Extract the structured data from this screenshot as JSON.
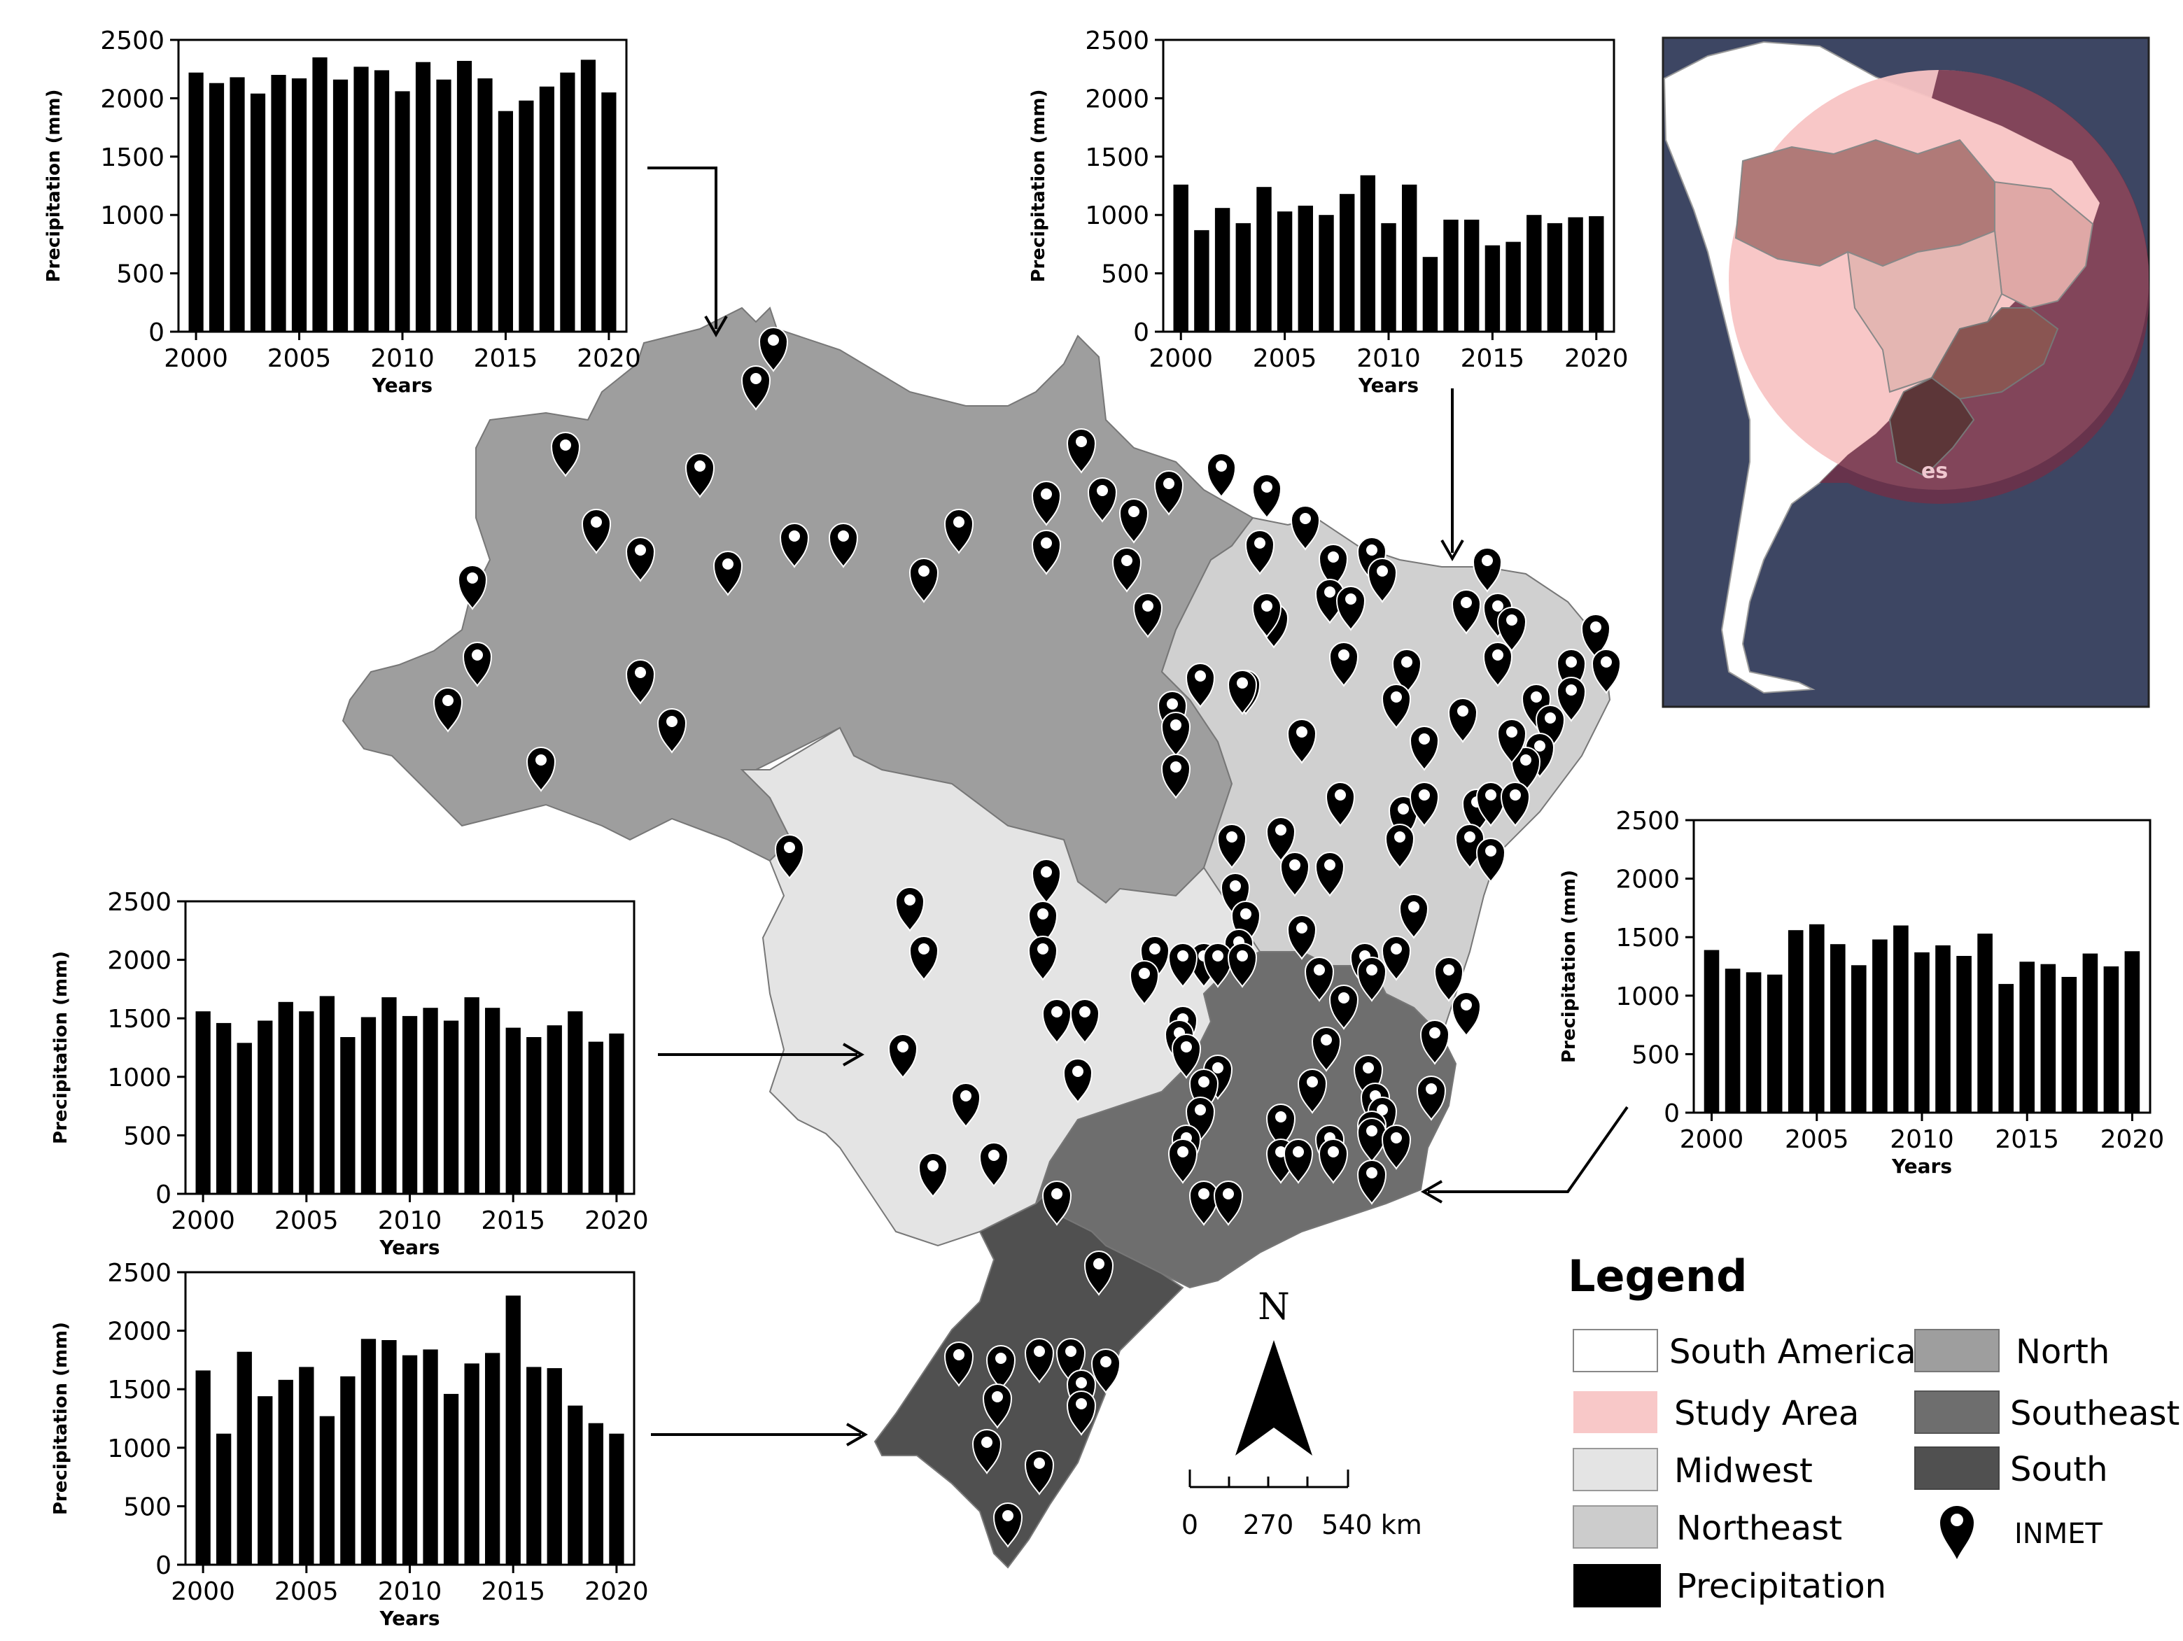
{
  "colors": {
    "north": "#9e9e9e",
    "northeast": "#d0d0d0",
    "midwest": "#e4e4e4",
    "southeast": "#6e6e6e",
    "south": "#505050",
    "bar": "#000000",
    "ocean": "#3d4663",
    "study_area": "#f8c4c4",
    "inset_dark": "#6e3048"
  },
  "inset": {
    "label": "es"
  },
  "legend": {
    "title": "Legend",
    "items": [
      {
        "label": "South America",
        "swatch": "#ffffff"
      },
      {
        "label": "Study Area",
        "swatch": "#f8c8c8"
      },
      {
        "label": "Midwest",
        "swatch": "#e4e4e4"
      },
      {
        "label": "Northeast",
        "swatch": "#cccccc"
      },
      {
        "label": "Precipitation",
        "swatch": "#000000"
      },
      {
        "label": "North",
        "swatch": "#9e9e9e"
      },
      {
        "label": "Southeast",
        "swatch": "#6e6e6e"
      },
      {
        "label": "South",
        "swatch": "#505050"
      },
      {
        "label": "INMET",
        "swatch": "marker-icon"
      }
    ]
  },
  "scale_bar": {
    "labels": [
      "0",
      "270",
      "540 km"
    ]
  },
  "north_arrow": {
    "label": "N"
  },
  "chart_data": [
    {
      "id": "north",
      "type": "bar",
      "xlabel": "Years",
      "ylabel": "Precipitation (mm)",
      "ylim": [
        0,
        2500
      ],
      "yticks": [
        0,
        500,
        1000,
        1500,
        2000,
        2500
      ],
      "xticks": [
        2000,
        2005,
        2010,
        2015,
        2020
      ],
      "x": [
        2000,
        2001,
        2002,
        2003,
        2004,
        2005,
        2006,
        2007,
        2008,
        2009,
        2010,
        2011,
        2012,
        2013,
        2014,
        2015,
        2016,
        2017,
        2018,
        2019,
        2020
      ],
      "values": [
        2220,
        2130,
        2180,
        2040,
        2200,
        2170,
        2350,
        2160,
        2270,
        2240,
        2060,
        2310,
        2160,
        2320,
        2170,
        1890,
        1980,
        2100,
        2220,
        2330,
        2050
      ]
    },
    {
      "id": "northeast",
      "type": "bar",
      "xlabel": "Years",
      "ylabel": "Precipitation (mm)",
      "ylim": [
        0,
        2500
      ],
      "yticks": [
        0,
        500,
        1000,
        1500,
        2000,
        2500
      ],
      "xticks": [
        2000,
        2005,
        2010,
        2015,
        2020
      ],
      "x": [
        2000,
        2001,
        2002,
        2003,
        2004,
        2005,
        2006,
        2007,
        2008,
        2009,
        2010,
        2011,
        2012,
        2013,
        2014,
        2015,
        2016,
        2017,
        2018,
        2019,
        2020
      ],
      "values": [
        1260,
        870,
        1060,
        930,
        1240,
        1030,
        1080,
        1000,
        1180,
        1340,
        930,
        1260,
        640,
        960,
        960,
        740,
        770,
        1000,
        930,
        980,
        990
      ]
    },
    {
      "id": "southeast",
      "type": "bar",
      "xlabel": "Years",
      "ylabel": "Precipitation (mm)",
      "ylim": [
        0,
        2500
      ],
      "yticks": [
        0,
        500,
        1000,
        1500,
        2000,
        2500
      ],
      "xticks": [
        2000,
        2005,
        2010,
        2015,
        2020
      ],
      "x": [
        2000,
        2001,
        2002,
        2003,
        2004,
        2005,
        2006,
        2007,
        2008,
        2009,
        2010,
        2011,
        2012,
        2013,
        2014,
        2015,
        2016,
        2017,
        2018,
        2019,
        2020
      ],
      "values": [
        1390,
        1230,
        1200,
        1180,
        1560,
        1610,
        1440,
        1260,
        1480,
        1600,
        1370,
        1430,
        1340,
        1530,
        1100,
        1290,
        1270,
        1160,
        1360,
        1250,
        1380
      ]
    },
    {
      "id": "midwest",
      "type": "bar",
      "xlabel": "Years",
      "ylabel": "Precipitation (mm)",
      "ylim": [
        0,
        2500
      ],
      "yticks": [
        0,
        500,
        1000,
        1500,
        2000,
        2500
      ],
      "xticks": [
        2000,
        2005,
        2010,
        2015,
        2020
      ],
      "x": [
        2000,
        2001,
        2002,
        2003,
        2004,
        2005,
        2006,
        2007,
        2008,
        2009,
        2010,
        2011,
        2012,
        2013,
        2014,
        2015,
        2016,
        2017,
        2018,
        2019,
        2020
      ],
      "values": [
        1560,
        1460,
        1290,
        1480,
        1640,
        1560,
        1690,
        1340,
        1510,
        1680,
        1520,
        1590,
        1480,
        1680,
        1590,
        1420,
        1340,
        1440,
        1560,
        1300,
        1370
      ]
    },
    {
      "id": "south",
      "type": "bar",
      "xlabel": "Years",
      "ylabel": "Precipitation (mm)",
      "ylim": [
        0,
        2500
      ],
      "yticks": [
        0,
        500,
        1000,
        1500,
        2000,
        2500
      ],
      "xticks": [
        2000,
        2005,
        2010,
        2015,
        2020
      ],
      "x": [
        2000,
        2001,
        2002,
        2003,
        2004,
        2005,
        2006,
        2007,
        2008,
        2009,
        2010,
        2011,
        2012,
        2013,
        2014,
        2015,
        2016,
        2017,
        2018,
        2019,
        2020
      ],
      "values": [
        1660,
        1120,
        1820,
        1440,
        1580,
        1690,
        1270,
        1610,
        1930,
        1920,
        1790,
        1840,
        1460,
        1720,
        1810,
        2300,
        1690,
        1680,
        1360,
        1210,
        1120
      ]
    }
  ]
}
